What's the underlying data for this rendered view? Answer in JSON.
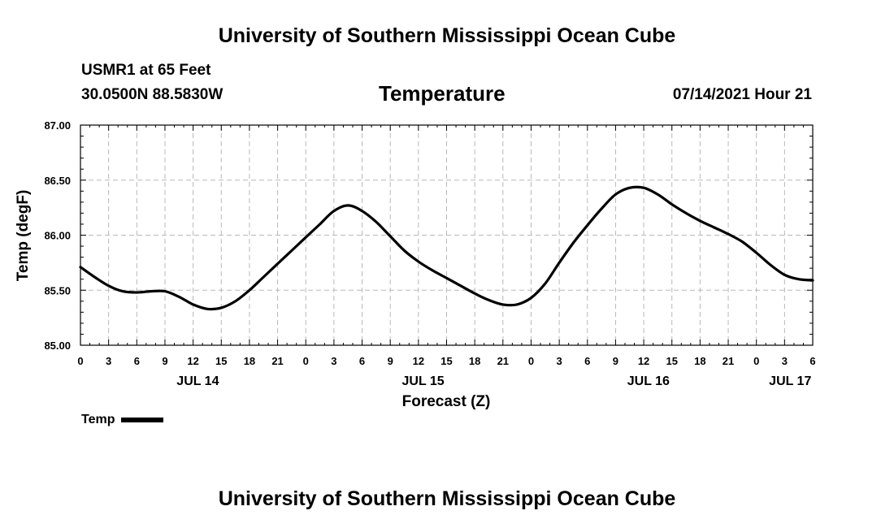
{
  "header": {
    "title": "University of Southern Mississippi Ocean Cube",
    "station": "USMR1 at 65 Feet",
    "coordinates": "30.0500N  88.5830W",
    "datetime": "07/14/2021 Hour 21"
  },
  "footer": {
    "title": "University of Southern Mississippi Ocean Cube"
  },
  "chart_data": {
    "type": "line",
    "title": "Temperature",
    "xlabel": "Forecast (Z)",
    "ylabel": "Temp (degF)",
    "ylim": [
      85.0,
      87.0
    ],
    "xlim_hours": [
      0,
      78
    ],
    "x_ticks": [
      {
        "hour": 0,
        "label": "0"
      },
      {
        "hour": 3,
        "label": "3"
      },
      {
        "hour": 6,
        "label": "6"
      },
      {
        "hour": 9,
        "label": "9"
      },
      {
        "hour": 12,
        "label": "12"
      },
      {
        "hour": 15,
        "label": "15"
      },
      {
        "hour": 18,
        "label": "18"
      },
      {
        "hour": 21,
        "label": "21"
      },
      {
        "hour": 24,
        "label": "0"
      },
      {
        "hour": 27,
        "label": "3"
      },
      {
        "hour": 30,
        "label": "6"
      },
      {
        "hour": 33,
        "label": "9"
      },
      {
        "hour": 36,
        "label": "12"
      },
      {
        "hour": 39,
        "label": "15"
      },
      {
        "hour": 42,
        "label": "18"
      },
      {
        "hour": 45,
        "label": "21"
      },
      {
        "hour": 48,
        "label": "0"
      },
      {
        "hour": 51,
        "label": "3"
      },
      {
        "hour": 54,
        "label": "6"
      },
      {
        "hour": 57,
        "label": "9"
      },
      {
        "hour": 60,
        "label": "12"
      },
      {
        "hour": 63,
        "label": "15"
      },
      {
        "hour": 66,
        "label": "18"
      },
      {
        "hour": 69,
        "label": "21"
      },
      {
        "hour": 72,
        "label": "0"
      },
      {
        "hour": 75,
        "label": "3"
      },
      {
        "hour": 78,
        "label": "6"
      }
    ],
    "date_labels": [
      {
        "hour": 12.5,
        "label": "JUL 14"
      },
      {
        "hour": 36.5,
        "label": "JUL 15"
      },
      {
        "hour": 60.5,
        "label": "JUL 16"
      },
      {
        "hour": 75.6,
        "label": "JUL 17"
      }
    ],
    "y_ticks": [
      "85.00",
      "85.50",
      "86.00",
      "86.50",
      "87.00"
    ],
    "grid": true,
    "legend": {
      "position": "bottom-left",
      "label": "Temp"
    },
    "series": [
      {
        "name": "Temp",
        "x": [
          0,
          1.5,
          3,
          4.5,
          6,
          7.5,
          9,
          10.5,
          12,
          13.5,
          15,
          16.5,
          18,
          19.5,
          21,
          22.5,
          24,
          25.5,
          27,
          28.5,
          30,
          31.5,
          33,
          34.5,
          36,
          37.5,
          39,
          40.5,
          42,
          43.5,
          45,
          46.5,
          48,
          49.5,
          51,
          52.5,
          54,
          55.5,
          57,
          58.5,
          60,
          61.5,
          63,
          64.5,
          66,
          67.5,
          69,
          70.5,
          72,
          73.5,
          75,
          76.5,
          78
        ],
        "values": [
          85.71,
          85.62,
          85.54,
          85.49,
          85.48,
          85.49,
          85.49,
          85.44,
          85.37,
          85.33,
          85.34,
          85.4,
          85.5,
          85.62,
          85.74,
          85.86,
          85.98,
          86.1,
          86.22,
          86.27,
          86.22,
          86.12,
          85.99,
          85.86,
          85.76,
          85.68,
          85.61,
          85.54,
          85.47,
          85.41,
          85.37,
          85.37,
          85.43,
          85.56,
          85.75,
          85.93,
          86.09,
          86.24,
          86.37,
          86.43,
          86.43,
          86.37,
          86.28,
          86.2,
          86.13,
          86.07,
          86.01,
          85.94,
          85.84,
          85.73,
          85.64,
          85.6,
          85.59
        ]
      }
    ]
  }
}
